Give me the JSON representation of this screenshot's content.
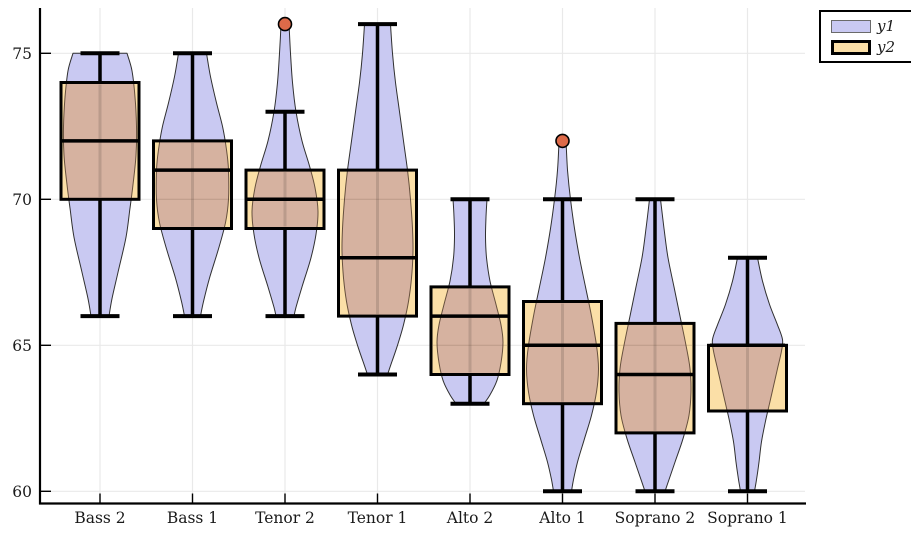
{
  "chart_data": {
    "type": "violin+boxplot",
    "title": "",
    "xlabel": "",
    "ylabel": "",
    "categories": [
      "Bass 2",
      "Bass 1",
      "Tenor 2",
      "Tenor 1",
      "Alto 2",
      "Alto 1",
      "Soprano 2",
      "Soprano 1"
    ],
    "y_ticks": [
      60,
      65,
      70,
      75
    ],
    "ylim": [
      59.6,
      76.6
    ],
    "grid": true,
    "legend_position": "top-right",
    "series": [
      {
        "name": "y1",
        "type": "violin"
      },
      {
        "name": "y2",
        "type": "boxplot"
      }
    ],
    "colors": {
      "violin_fill": "#c9c9f2",
      "violin_stroke": "#2f2f2f",
      "box_fill": "#fbdfa7",
      "box_overlap_fill": "#d6b2a0",
      "box_stroke": "#000000",
      "median_stroke": "#000000",
      "whisker_stroke": "#000000",
      "outlier_fill": "#dd6a49",
      "outlier_stroke": "#000000",
      "grid_color": "#e9e9e9",
      "axis_color": "#000000",
      "text_color": "#1a1a1a"
    },
    "groups": [
      {
        "label": "Bass 2",
        "whisker_low": 66,
        "q1": 70,
        "median": 72,
        "q3": 74,
        "whisker_high": 75,
        "outliers": [],
        "violin_profile": [
          [
            75,
            27
          ],
          [
            74.4,
            32
          ],
          [
            73.5,
            35
          ],
          [
            72.5,
            36.5
          ],
          [
            71.5,
            36
          ],
          [
            70.5,
            33
          ],
          [
            69.7,
            30
          ],
          [
            68.7,
            26
          ],
          [
            67.5,
            18
          ],
          [
            66.6,
            12
          ],
          [
            66,
            9
          ]
        ]
      },
      {
        "label": "Bass 1",
        "whisker_low": 66,
        "q1": 69,
        "median": 71,
        "q3": 72,
        "whisker_high": 75,
        "outliers": [],
        "violin_profile": [
          [
            75,
            14
          ],
          [
            74.2,
            18
          ],
          [
            73.3,
            24
          ],
          [
            72.5,
            30
          ],
          [
            71.7,
            34
          ],
          [
            71,
            36
          ],
          [
            70,
            36
          ],
          [
            69.2,
            33
          ],
          [
            68.3,
            26
          ],
          [
            67.3,
            17
          ],
          [
            66.5,
            11
          ],
          [
            66,
            8
          ]
        ]
      },
      {
        "label": "Tenor 2",
        "whisker_low": 66,
        "q1": 69,
        "median": 70,
        "q3": 71,
        "whisker_high": 73,
        "outliers": [
          76
        ],
        "violin_profile": [
          [
            76,
            4
          ],
          [
            75,
            5.5
          ],
          [
            74,
            7.5
          ],
          [
            73,
            11
          ],
          [
            72,
            17
          ],
          [
            71.2,
            24
          ],
          [
            70.4,
            30
          ],
          [
            69.6,
            33
          ],
          [
            68.8,
            31
          ],
          [
            68,
            26
          ],
          [
            67,
            17
          ],
          [
            66.3,
            11
          ],
          [
            66,
            9
          ]
        ]
      },
      {
        "label": "Tenor 1",
        "whisker_low": 64,
        "q1": 66,
        "median": 68,
        "q3": 71,
        "whisker_high": 76,
        "outliers": [],
        "violin_profile": [
          [
            76,
            13
          ],
          [
            75,
            15
          ],
          [
            74,
            18
          ],
          [
            73,
            22
          ],
          [
            72,
            26
          ],
          [
            71,
            30
          ],
          [
            70,
            33
          ],
          [
            69,
            35
          ],
          [
            68.2,
            35.5
          ],
          [
            67.3,
            34
          ],
          [
            66.5,
            31
          ],
          [
            65.7,
            26
          ],
          [
            65,
            20
          ],
          [
            64.4,
            14
          ],
          [
            64,
            10
          ]
        ]
      },
      {
        "label": "Alto 2",
        "whisker_low": 63,
        "q1": 64,
        "median": 66,
        "q3": 67,
        "whisker_high": 70,
        "outliers": [],
        "violin_profile": [
          [
            70,
            17
          ],
          [
            69.4,
            16
          ],
          [
            68.7,
            15.5
          ],
          [
            68,
            16.5
          ],
          [
            67.2,
            20
          ],
          [
            66.4,
            26
          ],
          [
            65.7,
            31
          ],
          [
            65.1,
            33
          ],
          [
            64.4,
            31
          ],
          [
            63.8,
            27
          ],
          [
            63.3,
            20
          ],
          [
            63,
            14
          ]
        ]
      },
      {
        "label": "Alto 1",
        "whisker_low": 60,
        "q1": 63,
        "median": 65,
        "q3": 66.5,
        "whisker_high": 70,
        "outliers": [
          72
        ],
        "violin_profile": [
          [
            72,
            3.5
          ],
          [
            71,
            5
          ],
          [
            70,
            8
          ],
          [
            69,
            12
          ],
          [
            68,
            17
          ],
          [
            67,
            23
          ],
          [
            66,
            29
          ],
          [
            65,
            34
          ],
          [
            64.2,
            36
          ],
          [
            63.4,
            34
          ],
          [
            62.6,
            29
          ],
          [
            61.8,
            22
          ],
          [
            61,
            15
          ],
          [
            60.4,
            11
          ],
          [
            60,
            9
          ]
        ]
      },
      {
        "label": "Soprano 2",
        "whisker_low": 60,
        "q1": 62,
        "median": 64,
        "q3": 65.75,
        "whisker_high": 70,
        "outliers": [],
        "violin_profile": [
          [
            70,
            5.5
          ],
          [
            69,
            9
          ],
          [
            68,
            13
          ],
          [
            67,
            19
          ],
          [
            66,
            25
          ],
          [
            65,
            31
          ],
          [
            64.2,
            35
          ],
          [
            63.4,
            36
          ],
          [
            62.6,
            34
          ],
          [
            61.8,
            28
          ],
          [
            61,
            20
          ],
          [
            60.4,
            14
          ],
          [
            60,
            10
          ]
        ]
      },
      {
        "label": "Soprano 1",
        "whisker_low": 60,
        "q1": 62.75,
        "median": 65,
        "q3": 65,
        "whisker_high": 68,
        "outliers": [],
        "violin_profile": [
          [
            68,
            10
          ],
          [
            67.2,
            15
          ],
          [
            66.4,
            22
          ],
          [
            65.7,
            30
          ],
          [
            65.2,
            35
          ],
          [
            64.8,
            34
          ],
          [
            64.2,
            30
          ],
          [
            63.6,
            26
          ],
          [
            63,
            22
          ],
          [
            62.4,
            18
          ],
          [
            61.7,
            14
          ],
          [
            61,
            11.5
          ],
          [
            60.4,
            9
          ],
          [
            60,
            7
          ]
        ]
      }
    ]
  }
}
